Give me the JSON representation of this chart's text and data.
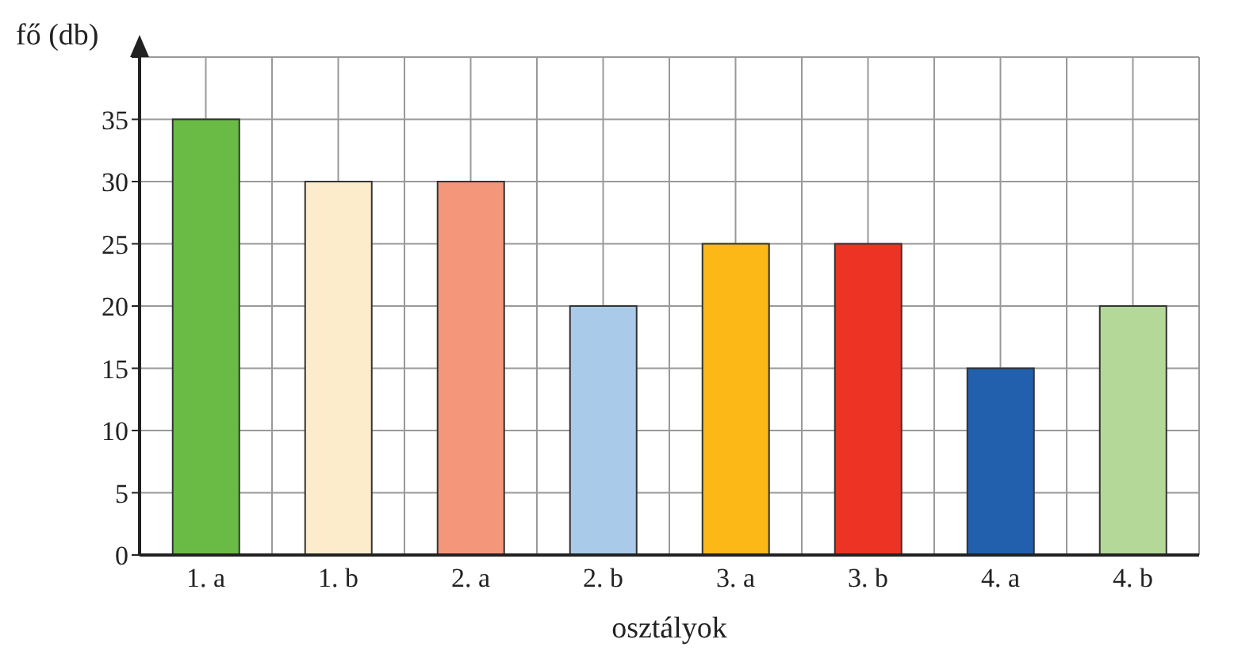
{
  "chart_data": {
    "type": "bar",
    "xlabel": "osztályok",
    "ylabel": "fő (db)",
    "categories": [
      "1. a",
      "1. b",
      "2. a",
      "2. b",
      "3. a",
      "3. b",
      "4. a",
      "4. b"
    ],
    "values": [
      35,
      30,
      30,
      20,
      25,
      25,
      15,
      20
    ],
    "colors": [
      "#6abb45",
      "#fdeccc",
      "#f4967a",
      "#a9cbe9",
      "#fbb817",
      "#ec3324",
      "#2260ad",
      "#b3d897"
    ],
    "ylim": [
      0,
      40
    ],
    "yticks": [
      0,
      5,
      10,
      15,
      20,
      25,
      30,
      35,
      {
        "value": 40,
        "label": null
      }
    ],
    "grid": true
  }
}
